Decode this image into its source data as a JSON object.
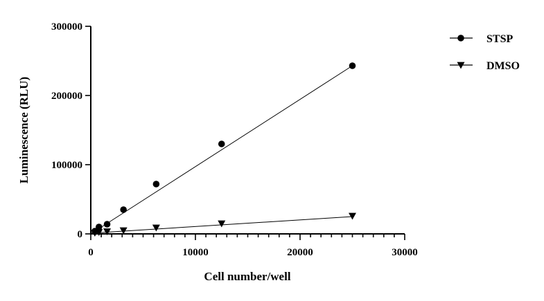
{
  "chart_data": {
    "type": "scatter",
    "xlabel": "Cell number/well",
    "ylabel": "Luminescence (RLU)",
    "xlim": [
      0,
      30000
    ],
    "ylim": [
      0,
      300000
    ],
    "x_ticks": [
      0,
      10000,
      20000,
      30000
    ],
    "x_tick_labels": [
      "0",
      "10000",
      "20000",
      "30000"
    ],
    "x_minor_step": 1000,
    "y_ticks": [
      0,
      100000,
      200000,
      300000
    ],
    "y_tick_labels": [
      "0",
      "100000",
      "200000",
      "300000"
    ],
    "grid": false,
    "legend_position": "top-right",
    "series": [
      {
        "name": "STSP",
        "marker": "circle",
        "color": "#000000",
        "x": [
          390,
          780,
          1560,
          3125,
          6250,
          12500,
          25000
        ],
        "y": [
          4000,
          10000,
          14000,
          35000,
          72000,
          130000,
          243000
        ],
        "fit": [
          [
            0,
            0
          ],
          [
            25000,
            243000
          ]
        ]
      },
      {
        "name": "DMSO",
        "marker": "triangle-down",
        "color": "#000000",
        "x": [
          390,
          780,
          1560,
          3125,
          6250,
          12500,
          25000
        ],
        "y": [
          1500,
          2500,
          3500,
          5000,
          9000,
          15000,
          26000
        ],
        "fit": [
          [
            0,
            1000
          ],
          [
            25000,
            25000
          ]
        ]
      }
    ]
  }
}
